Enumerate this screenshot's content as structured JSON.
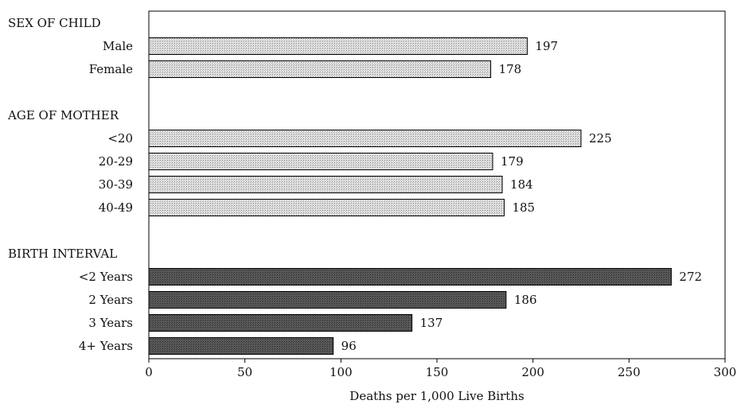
{
  "chart_data": {
    "type": "bar",
    "orientation": "horizontal",
    "title": "",
    "xlabel": "Deaths per 1,000 Live Births",
    "ylabel": "",
    "xlim": [
      0,
      300
    ],
    "xticks": [
      "0",
      "50",
      "100",
      "150",
      "200",
      "250",
      "300"
    ],
    "grid": false,
    "groups": [
      {
        "name": "SEX OF CHILD",
        "color": "#d4d4d4",
        "items": [
          {
            "category": "Male",
            "value": 197
          },
          {
            "category": "Female",
            "value": 178
          }
        ]
      },
      {
        "name": "AGE OF MOTHER",
        "color": "#d4d4d4",
        "items": [
          {
            "category": "<20",
            "value": 225
          },
          {
            "category": "20-29",
            "value": 179
          },
          {
            "category": "30-39",
            "value": 184
          },
          {
            "category": "40-49",
            "value": 185
          }
        ]
      },
      {
        "name": "BIRTH INTERVAL",
        "color": "#555555",
        "items": [
          {
            "category": "<2 Years",
            "value": 272
          },
          {
            "category": "2 Years",
            "value": 186
          },
          {
            "category": "3 Years",
            "value": 137
          },
          {
            "category": "4+ Years",
            "value": 96
          }
        ]
      }
    ]
  }
}
